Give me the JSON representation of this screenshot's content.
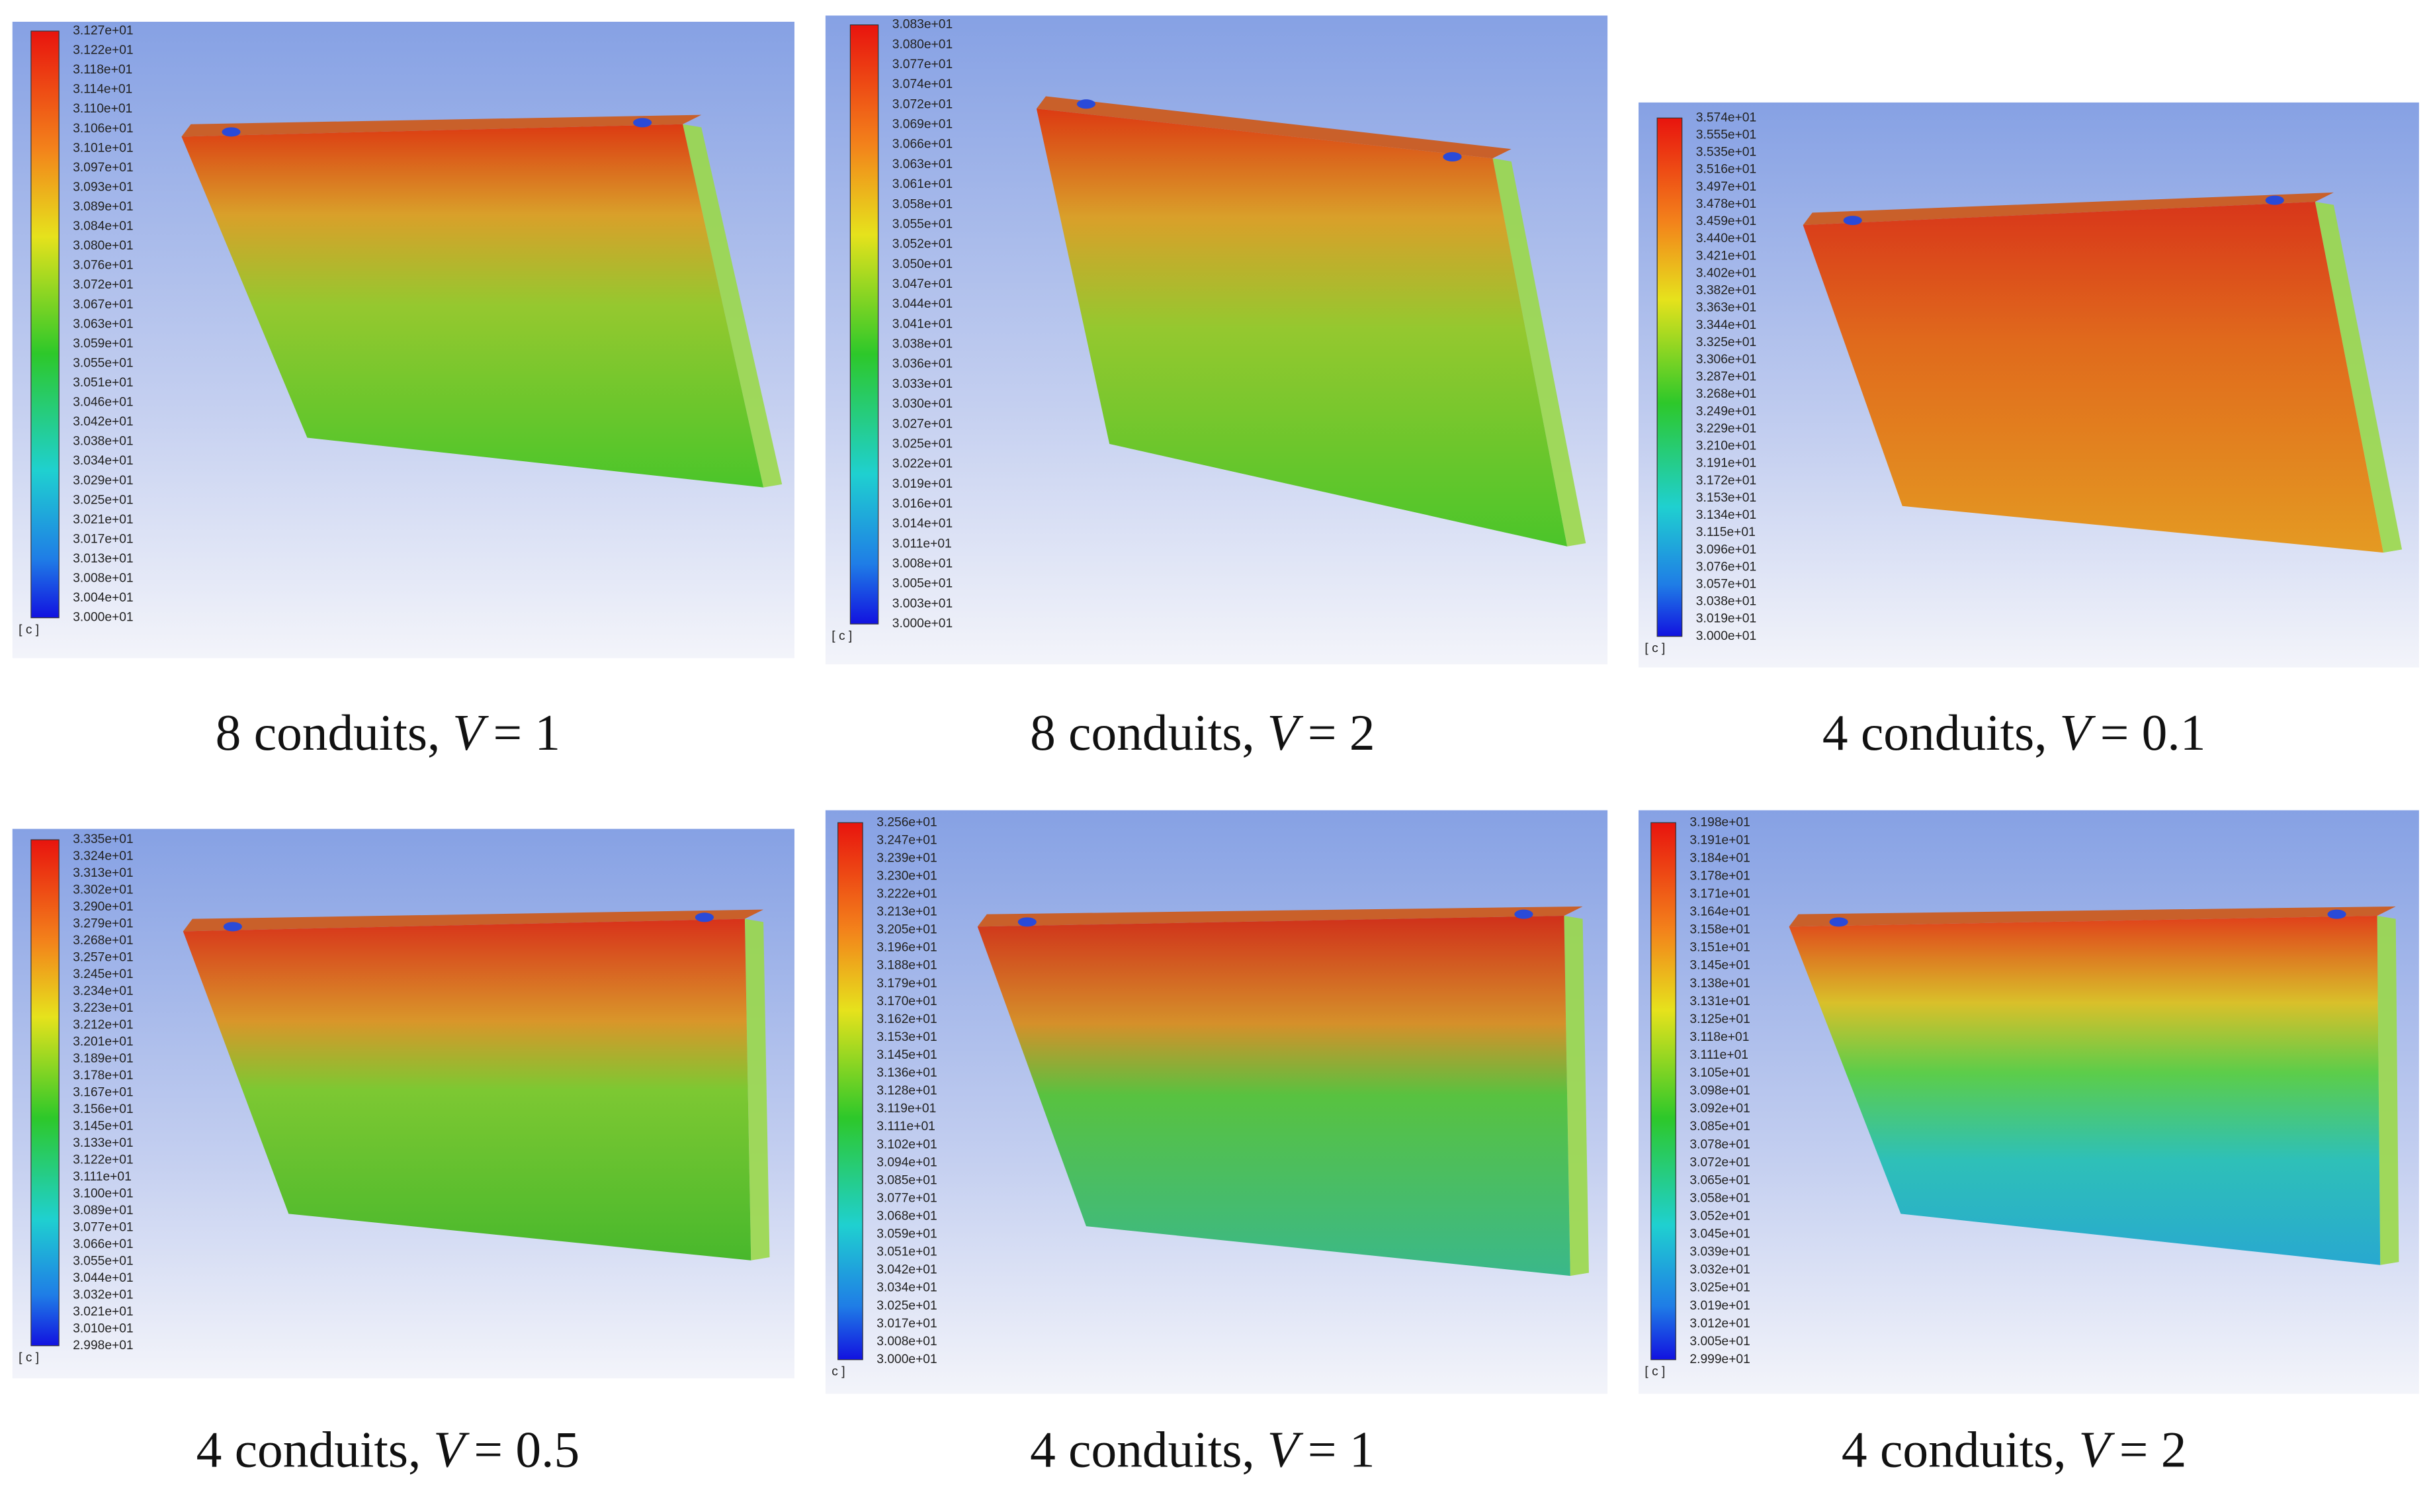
{
  "panels": [
    {
      "labels": [
        "3.127e+01",
        "3.122e+01",
        "3.118e+01",
        "3.114e+01",
        "3.110e+01",
        "3.106e+01",
        "3.101e+01",
        "3.097e+01",
        "3.093e+01",
        "3.089e+01",
        "3.084e+01",
        "3.080e+01",
        "3.076e+01",
        "3.072e+01",
        "3.067e+01",
        "3.063e+01",
        "3.059e+01",
        "3.055e+01",
        "3.051e+01",
        "3.046e+01",
        "3.042e+01",
        "3.038e+01",
        "3.034e+01",
        "3.029e+01",
        "3.025e+01",
        "3.021e+01",
        "3.017e+01",
        "3.013e+01",
        "3.008e+01",
        "3.004e+01",
        "3.000e+01"
      ],
      "unit": "[ c ]",
      "caption": {
        "text": "8 conduits,",
        "var": "V",
        "rest": "= 1"
      }
    },
    {
      "labels": [
        "3.083e+01",
        "3.080e+01",
        "3.077e+01",
        "3.074e+01",
        "3.072e+01",
        "3.069e+01",
        "3.066e+01",
        "3.063e+01",
        "3.061e+01",
        "3.058e+01",
        "3.055e+01",
        "3.052e+01",
        "3.050e+01",
        "3.047e+01",
        "3.044e+01",
        "3.041e+01",
        "3.038e+01",
        "3.036e+01",
        "3.033e+01",
        "3.030e+01",
        "3.027e+01",
        "3.025e+01",
        "3.022e+01",
        "3.019e+01",
        "3.016e+01",
        "3.014e+01",
        "3.011e+01",
        "3.008e+01",
        "3.005e+01",
        "3.003e+01",
        "3.000e+01"
      ],
      "unit": "[ c ]",
      "caption": {
        "text": "8 conduits,",
        "var": "V",
        "rest": "= 2"
      }
    },
    {
      "labels": [
        "3.574e+01",
        "3.555e+01",
        "3.535e+01",
        "3.516e+01",
        "3.497e+01",
        "3.478e+01",
        "3.459e+01",
        "3.440e+01",
        "3.421e+01",
        "3.402e+01",
        "3.382e+01",
        "3.363e+01",
        "3.344e+01",
        "3.325e+01",
        "3.306e+01",
        "3.287e+01",
        "3.268e+01",
        "3.249e+01",
        "3.229e+01",
        "3.210e+01",
        "3.191e+01",
        "3.172e+01",
        "3.153e+01",
        "3.134e+01",
        "3.115e+01",
        "3.096e+01",
        "3.076e+01",
        "3.057e+01",
        "3.038e+01",
        "3.019e+01",
        "3.000e+01"
      ],
      "unit": "[ c ]",
      "caption": {
        "text": "4 conduits,",
        "var": "V",
        "rest": "= 0.1"
      }
    },
    {
      "labels": [
        "3.335e+01",
        "3.324e+01",
        "3.313e+01",
        "3.302e+01",
        "3.290e+01",
        "3.279e+01",
        "3.268e+01",
        "3.257e+01",
        "3.245e+01",
        "3.234e+01",
        "3.223e+01",
        "3.212e+01",
        "3.201e+01",
        "3.189e+01",
        "3.178e+01",
        "3.167e+01",
        "3.156e+01",
        "3.145e+01",
        "3.133e+01",
        "3.122e+01",
        "3.111e+01",
        "3.100e+01",
        "3.089e+01",
        "3.077e+01",
        "3.066e+01",
        "3.055e+01",
        "3.044e+01",
        "3.032e+01",
        "3.021e+01",
        "3.010e+01",
        "2.998e+01"
      ],
      "unit": "[ c ]",
      "caption": {
        "text": "4 conduits,",
        "var": "V",
        "rest": "= 0.5"
      }
    },
    {
      "labels": [
        "3.256e+01",
        "3.247e+01",
        "3.239e+01",
        "3.230e+01",
        "3.222e+01",
        "3.213e+01",
        "3.205e+01",
        "3.196e+01",
        "3.188e+01",
        "3.179e+01",
        "3.170e+01",
        "3.162e+01",
        "3.153e+01",
        "3.145e+01",
        "3.136e+01",
        "3.128e+01",
        "3.119e+01",
        "3.111e+01",
        "3.102e+01",
        "3.094e+01",
        "3.085e+01",
        "3.077e+01",
        "3.068e+01",
        "3.059e+01",
        "3.051e+01",
        "3.042e+01",
        "3.034e+01",
        "3.025e+01",
        "3.017e+01",
        "3.008e+01",
        "3.000e+01"
      ],
      "unit": "c ]",
      "caption": {
        "text": "4 conduits,",
        "var": "V",
        "rest": "= 1"
      }
    },
    {
      "labels": [
        "3.198e+01",
        "3.191e+01",
        "3.184e+01",
        "3.178e+01",
        "3.171e+01",
        "3.164e+01",
        "3.158e+01",
        "3.151e+01",
        "3.145e+01",
        "3.138e+01",
        "3.131e+01",
        "3.125e+01",
        "3.118e+01",
        "3.111e+01",
        "3.105e+01",
        "3.098e+01",
        "3.092e+01",
        "3.085e+01",
        "3.078e+01",
        "3.072e+01",
        "3.065e+01",
        "3.058e+01",
        "3.052e+01",
        "3.045e+01",
        "3.039e+01",
        "3.032e+01",
        "3.025e+01",
        "3.019e+01",
        "3.012e+01",
        "3.005e+01",
        "2.999e+01"
      ],
      "unit": "[ c ]",
      "caption": {
        "text": "4 conduits,",
        "var": "V",
        "rest": "= 2"
      }
    }
  ]
}
